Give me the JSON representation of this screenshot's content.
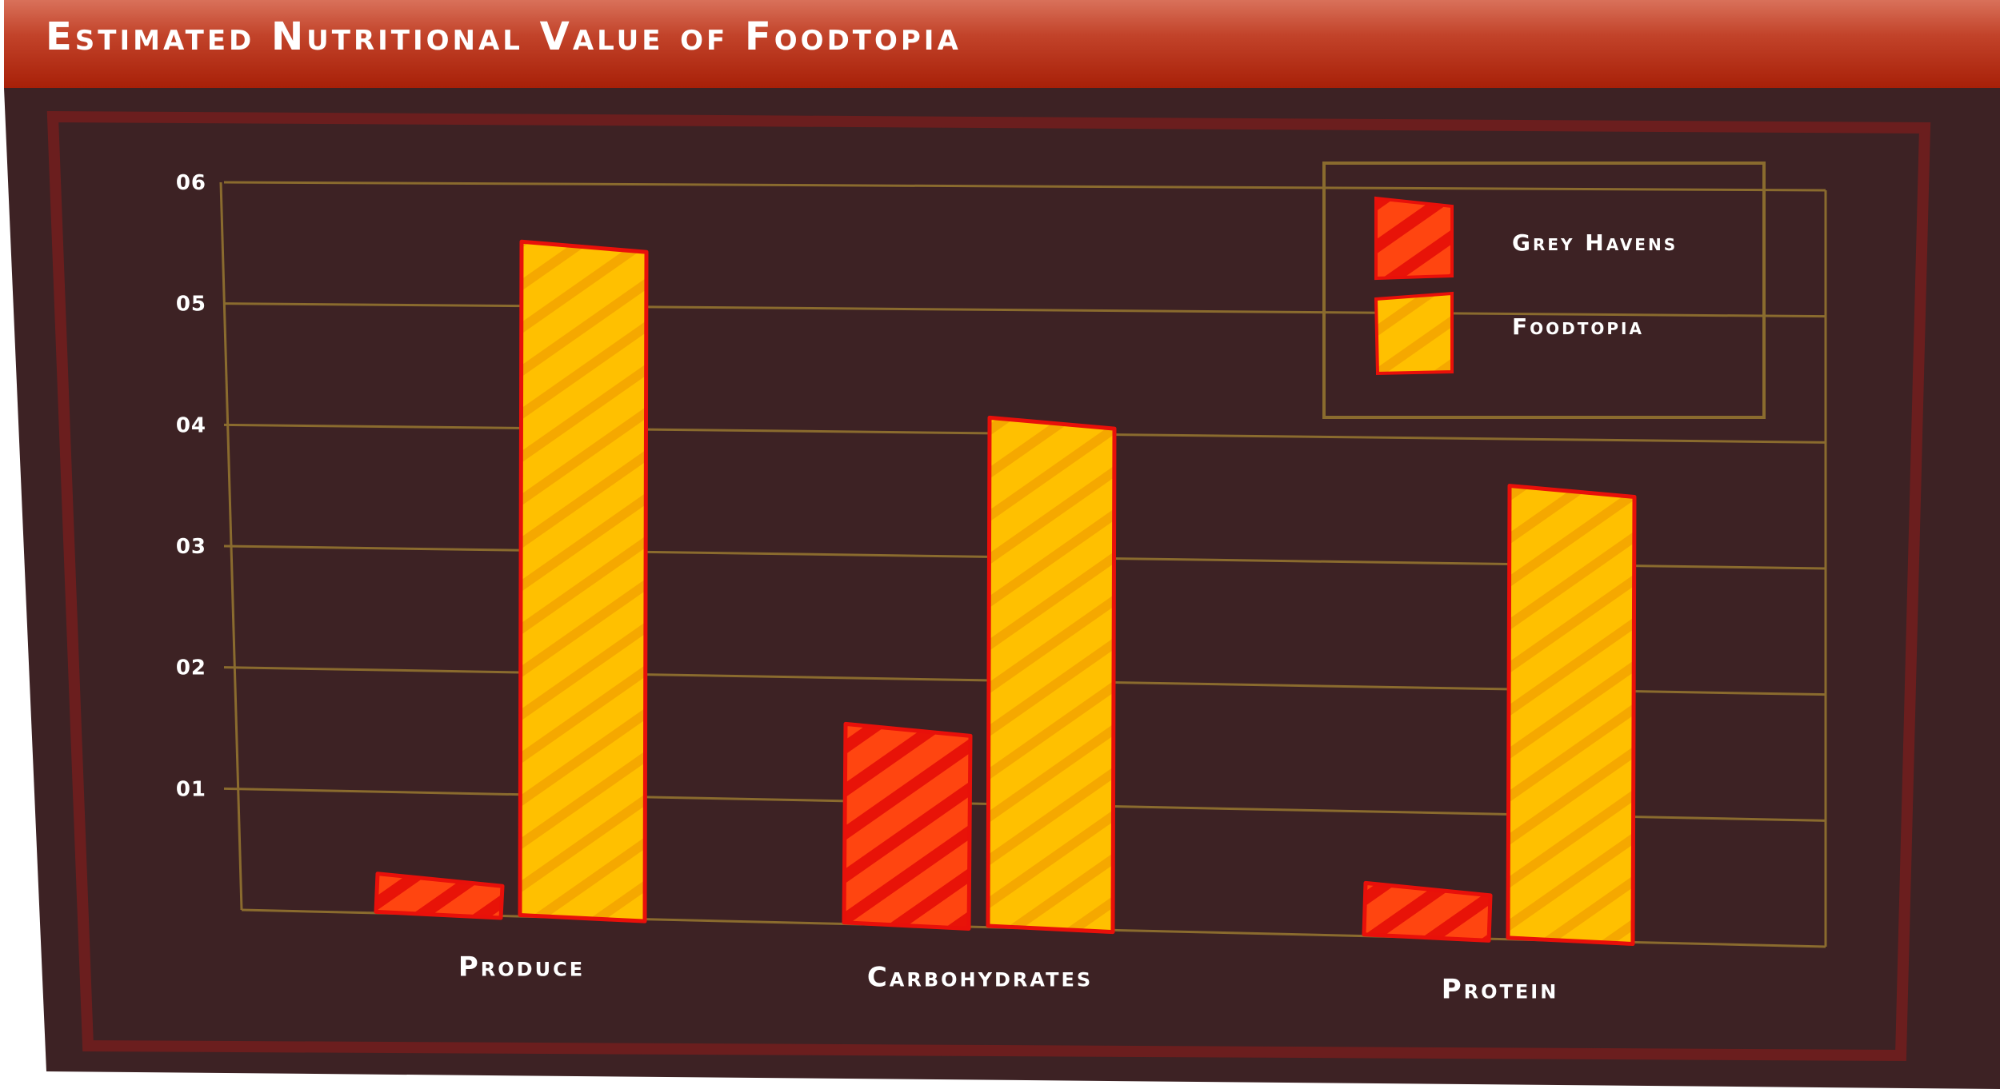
{
  "title": "Estimated Nutritional Value of Foodtopia",
  "colors": {
    "panel": "#3d2224",
    "frame": "#6b1e1e",
    "grid": "#8a6b2e",
    "grey_havens_fill": "#ff4510",
    "grey_havens_stripe": "#e81308",
    "foodtopia_fill": "#ffc000",
    "foodtopia_stripe": "#f5a800",
    "bar_outline": "#e8100a"
  },
  "chart_data": {
    "type": "bar",
    "title": "Estimated Nutritional Value of Foodtopia",
    "categories": [
      "Produce",
      "Carbohydrates",
      "Protein"
    ],
    "series": [
      {
        "name": "Grey Havens",
        "values": [
          3,
          16,
          4
        ]
      },
      {
        "name": "Foodtopia",
        "values": [
          55,
          41,
          36
        ]
      }
    ],
    "ylim": [
      0,
      60
    ],
    "yticks": [
      10,
      20,
      30,
      40,
      50,
      60
    ],
    "ytick_labels": [
      "01",
      "02",
      "03",
      "04",
      "05",
      "06"
    ],
    "xlabel": "",
    "ylabel": "",
    "grid": true,
    "legend": "top-right"
  }
}
